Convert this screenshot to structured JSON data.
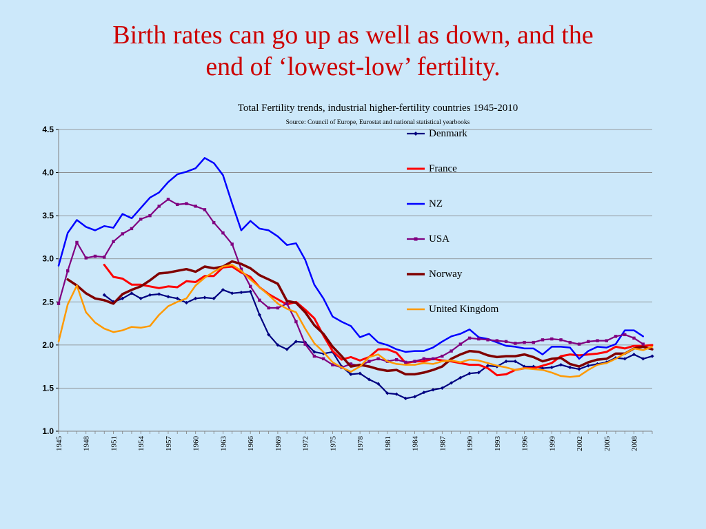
{
  "slide": {
    "title_line1": "Birth rates can go up as well as down, and the",
    "title_line2": "end of ‘lowest-low’ fertility."
  },
  "chart_data": {
    "type": "line",
    "title": "Total Fertility trends, industrial higher-fertility countries 1945-2010",
    "subtitle": "Source: Council of Europe, Eurostat and national statistical yearbooks",
    "xlabel": "",
    "ylabel": "",
    "xlim": [
      1945,
      2010
    ],
    "ylim": [
      1.0,
      4.5
    ],
    "yticks": [
      1.0,
      1.5,
      2.0,
      2.5,
      3.0,
      3.5,
      4.0,
      4.5
    ],
    "ytick_labels": [
      "1.0",
      "1.5",
      "2.0",
      "2.5",
      "3.0",
      "3.5",
      "4.0",
      "4.5"
    ],
    "xtick_labels": [
      "1945",
      "1948",
      "1951",
      "1954",
      "1957",
      "1960",
      "1963",
      "1966",
      "1969",
      "1972",
      "1975",
      "1978",
      "1981",
      "1984",
      "1987",
      "1990",
      "1993",
      "1996",
      "1999",
      "2002",
      "2005",
      "2008"
    ],
    "grid": "horizontal",
    "legend_position": "right",
    "series": [
      {
        "name": "Denmark",
        "color": "#000080",
        "marker": "diamond",
        "width": 2.2,
        "x": [
          1950,
          1951,
          1952,
          1953,
          1954,
          1955,
          1956,
          1957,
          1958,
          1959,
          1960,
          1961,
          1962,
          1963,
          1964,
          1965,
          1966,
          1967,
          1968,
          1969,
          1970,
          1971,
          1972,
          1973,
          1974,
          1975,
          1976,
          1977,
          1978,
          1979,
          1980,
          1981,
          1982,
          1983,
          1984,
          1985,
          1986,
          1987,
          1988,
          1989,
          1990,
          1991,
          1992,
          1993,
          1994,
          1995,
          1996,
          1997,
          1998,
          1999,
          2000,
          2001,
          2002,
          2003,
          2004,
          2005,
          2006,
          2007,
          2008,
          2009,
          2010
        ],
        "y": [
          2.58,
          2.5,
          2.54,
          2.6,
          2.54,
          2.58,
          2.59,
          2.56,
          2.54,
          2.49,
          2.54,
          2.55,
          2.54,
          2.64,
          2.6,
          2.61,
          2.62,
          2.35,
          2.12,
          2.0,
          1.95,
          2.04,
          2.03,
          1.92,
          1.9,
          1.92,
          1.75,
          1.66,
          1.67,
          1.6,
          1.55,
          1.44,
          1.43,
          1.38,
          1.4,
          1.45,
          1.48,
          1.5,
          1.56,
          1.62,
          1.67,
          1.68,
          1.76,
          1.75,
          1.81,
          1.81,
          1.75,
          1.75,
          1.73,
          1.74,
          1.77,
          1.74,
          1.72,
          1.76,
          1.78,
          1.8,
          1.85,
          1.84,
          1.89,
          1.84,
          1.87
        ]
      },
      {
        "name": "France",
        "color": "#ff0000",
        "marker": "none",
        "width": 3,
        "x": [
          1950,
          1951,
          1952,
          1953,
          1954,
          1955,
          1956,
          1957,
          1958,
          1959,
          1960,
          1961,
          1962,
          1963,
          1964,
          1965,
          1966,
          1967,
          1968,
          1969,
          1970,
          1971,
          1972,
          1973,
          1974,
          1975,
          1976,
          1977,
          1978,
          1979,
          1980,
          1981,
          1982,
          1983,
          1984,
          1985,
          1986,
          1987,
          1988,
          1989,
          1990,
          1991,
          1992,
          1993,
          1994,
          1995,
          1996,
          1997,
          1998,
          1999,
          2000,
          2001,
          2002,
          2003,
          2004,
          2005,
          2006,
          2007,
          2008,
          2009,
          2010
        ],
        "y": [
          2.93,
          2.79,
          2.77,
          2.7,
          2.7,
          2.68,
          2.66,
          2.68,
          2.67,
          2.74,
          2.73,
          2.8,
          2.8,
          2.9,
          2.91,
          2.84,
          2.79,
          2.67,
          2.59,
          2.53,
          2.47,
          2.5,
          2.41,
          2.31,
          2.11,
          1.93,
          1.83,
          1.86,
          1.82,
          1.86,
          1.95,
          1.95,
          1.91,
          1.79,
          1.81,
          1.81,
          1.84,
          1.82,
          1.81,
          1.79,
          1.77,
          1.77,
          1.73,
          1.65,
          1.66,
          1.71,
          1.73,
          1.73,
          1.76,
          1.79,
          1.87,
          1.89,
          1.88,
          1.89,
          1.9,
          1.92,
          1.98,
          1.96,
          1.99,
          1.99,
          2.0
        ]
      },
      {
        "name": "NZ",
        "color": "#0000ff",
        "marker": "none",
        "width": 2.5,
        "x": [
          1945,
          1946,
          1947,
          1948,
          1949,
          1950,
          1951,
          1952,
          1953,
          1954,
          1955,
          1956,
          1957,
          1958,
          1959,
          1960,
          1961,
          1962,
          1963,
          1964,
          1965,
          1966,
          1967,
          1968,
          1969,
          1970,
          1971,
          1972,
          1973,
          1974,
          1975,
          1976,
          1977,
          1978,
          1979,
          1980,
          1981,
          1982,
          1983,
          1984,
          1985,
          1986,
          1987,
          1988,
          1989,
          1990,
          1991,
          1992,
          1993,
          1994,
          1995,
          1996,
          1997,
          1998,
          1999,
          2000,
          2001,
          2002,
          2003,
          2004,
          2005,
          2006,
          2007,
          2008,
          2009
        ],
        "y": [
          2.92,
          3.3,
          3.45,
          3.37,
          3.33,
          3.38,
          3.36,
          3.52,
          3.47,
          3.59,
          3.71,
          3.77,
          3.89,
          3.98,
          4.01,
          4.05,
          4.17,
          4.11,
          3.97,
          3.64,
          3.33,
          3.44,
          3.35,
          3.33,
          3.26,
          3.16,
          3.18,
          2.99,
          2.7,
          2.54,
          2.33,
          2.27,
          2.22,
          2.09,
          2.13,
          2.03,
          2.0,
          1.95,
          1.92,
          1.93,
          1.93,
          1.97,
          2.04,
          2.1,
          2.13,
          2.18,
          2.09,
          2.07,
          2.03,
          1.99,
          1.98,
          1.96,
          1.96,
          1.89,
          1.98,
          1.98,
          1.97,
          1.84,
          1.93,
          1.98,
          1.97,
          2.01,
          2.17,
          2.17,
          2.1
        ]
      },
      {
        "name": "USA",
        "color": "#800080",
        "marker": "square",
        "width": 2.2,
        "x": [
          1945,
          1946,
          1947,
          1948,
          1949,
          1950,
          1951,
          1952,
          1953,
          1954,
          1955,
          1956,
          1957,
          1958,
          1959,
          1960,
          1961,
          1962,
          1963,
          1964,
          1965,
          1966,
          1967,
          1968,
          1969,
          1970,
          1971,
          1972,
          1973,
          1974,
          1975,
          1976,
          1977,
          1978,
          1979,
          1980,
          1981,
          1982,
          1983,
          1984,
          1985,
          1986,
          1987,
          1988,
          1989,
          1990,
          1991,
          1992,
          1993,
          1994,
          1995,
          1996,
          1997,
          1998,
          1999,
          2000,
          2001,
          2002,
          2003,
          2004,
          2005,
          2006,
          2007,
          2008,
          2009
        ],
        "y": [
          2.48,
          2.86,
          3.19,
          3.01,
          3.03,
          3.02,
          3.2,
          3.29,
          3.35,
          3.46,
          3.5,
          3.61,
          3.69,
          3.63,
          3.64,
          3.61,
          3.57,
          3.42,
          3.3,
          3.17,
          2.88,
          2.68,
          2.52,
          2.43,
          2.43,
          2.48,
          2.27,
          2.01,
          1.87,
          1.84,
          1.77,
          1.74,
          1.78,
          1.76,
          1.81,
          1.84,
          1.81,
          1.83,
          1.8,
          1.81,
          1.84,
          1.84,
          1.87,
          1.93,
          2.01,
          2.08,
          2.07,
          2.06,
          2.05,
          2.04,
          2.02,
          2.03,
          2.03,
          2.06,
          2.07,
          2.06,
          2.03,
          2.01,
          2.04,
          2.05,
          2.05,
          2.1,
          2.12,
          2.08,
          2.01
        ]
      },
      {
        "name": "Norway",
        "color": "#800000",
        "marker": "none",
        "width": 3.5,
        "x": [
          1946,
          1947,
          1948,
          1949,
          1950,
          1951,
          1952,
          1953,
          1954,
          1955,
          1956,
          1957,
          1958,
          1959,
          1960,
          1961,
          1962,
          1963,
          1964,
          1965,
          1966,
          1967,
          1968,
          1969,
          1970,
          1971,
          1972,
          1973,
          1974,
          1975,
          1976,
          1977,
          1978,
          1979,
          1980,
          1981,
          1982,
          1983,
          1984,
          1985,
          1986,
          1987,
          1988,
          1989,
          1990,
          1991,
          1992,
          1993,
          1994,
          1995,
          1996,
          1997,
          1998,
          1999,
          2000,
          2001,
          2002,
          2003,
          2004,
          2005,
          2006,
          2007,
          2008,
          2009,
          2010
        ],
        "y": [
          2.76,
          2.69,
          2.6,
          2.54,
          2.52,
          2.48,
          2.59,
          2.64,
          2.68,
          2.75,
          2.83,
          2.84,
          2.86,
          2.88,
          2.85,
          2.91,
          2.89,
          2.91,
          2.97,
          2.94,
          2.89,
          2.81,
          2.76,
          2.71,
          2.51,
          2.49,
          2.38,
          2.23,
          2.13,
          1.98,
          1.87,
          1.75,
          1.77,
          1.75,
          1.72,
          1.7,
          1.71,
          1.66,
          1.66,
          1.68,
          1.71,
          1.75,
          1.84,
          1.89,
          1.93,
          1.92,
          1.88,
          1.86,
          1.87,
          1.87,
          1.89,
          1.86,
          1.81,
          1.84,
          1.85,
          1.78,
          1.75,
          1.8,
          1.83,
          1.84,
          1.9,
          1.9,
          1.96,
          1.98,
          1.95
        ]
      },
      {
        "name": "United Kingdom",
        "color": "#ff9900",
        "marker": "none",
        "width": 2.5,
        "x": [
          1945,
          1946,
          1947,
          1948,
          1949,
          1950,
          1951,
          1952,
          1953,
          1954,
          1955,
          1956,
          1957,
          1958,
          1959,
          1960,
          1961,
          1962,
          1963,
          1964,
          1965,
          1966,
          1967,
          1968,
          1969,
          1970,
          1971,
          1972,
          1973,
          1974,
          1975,
          1976,
          1977,
          1978,
          1979,
          1980,
          1981,
          1982,
          1983,
          1984,
          1985,
          1986,
          1987,
          1988,
          1989,
          1990,
          1991,
          1992,
          1993,
          1994,
          1995,
          1996,
          1997,
          1998,
          1999,
          2000,
          2001,
          2002,
          2003,
          2004,
          2005,
          2006,
          2007,
          2008,
          2009,
          2010
        ],
        "y": [
          2.04,
          2.47,
          2.69,
          2.38,
          2.26,
          2.19,
          2.15,
          2.17,
          2.21,
          2.2,
          2.22,
          2.35,
          2.45,
          2.5,
          2.54,
          2.69,
          2.78,
          2.85,
          2.91,
          2.93,
          2.86,
          2.76,
          2.67,
          2.58,
          2.48,
          2.42,
          2.38,
          2.19,
          2.02,
          1.92,
          1.8,
          1.74,
          1.69,
          1.75,
          1.86,
          1.89,
          1.81,
          1.78,
          1.77,
          1.77,
          1.79,
          1.78,
          1.81,
          1.82,
          1.8,
          1.83,
          1.82,
          1.79,
          1.76,
          1.74,
          1.71,
          1.73,
          1.72,
          1.71,
          1.68,
          1.64,
          1.63,
          1.64,
          1.71,
          1.77,
          1.79,
          1.84,
          1.9,
          1.96,
          1.94,
          1.98
        ]
      }
    ]
  }
}
